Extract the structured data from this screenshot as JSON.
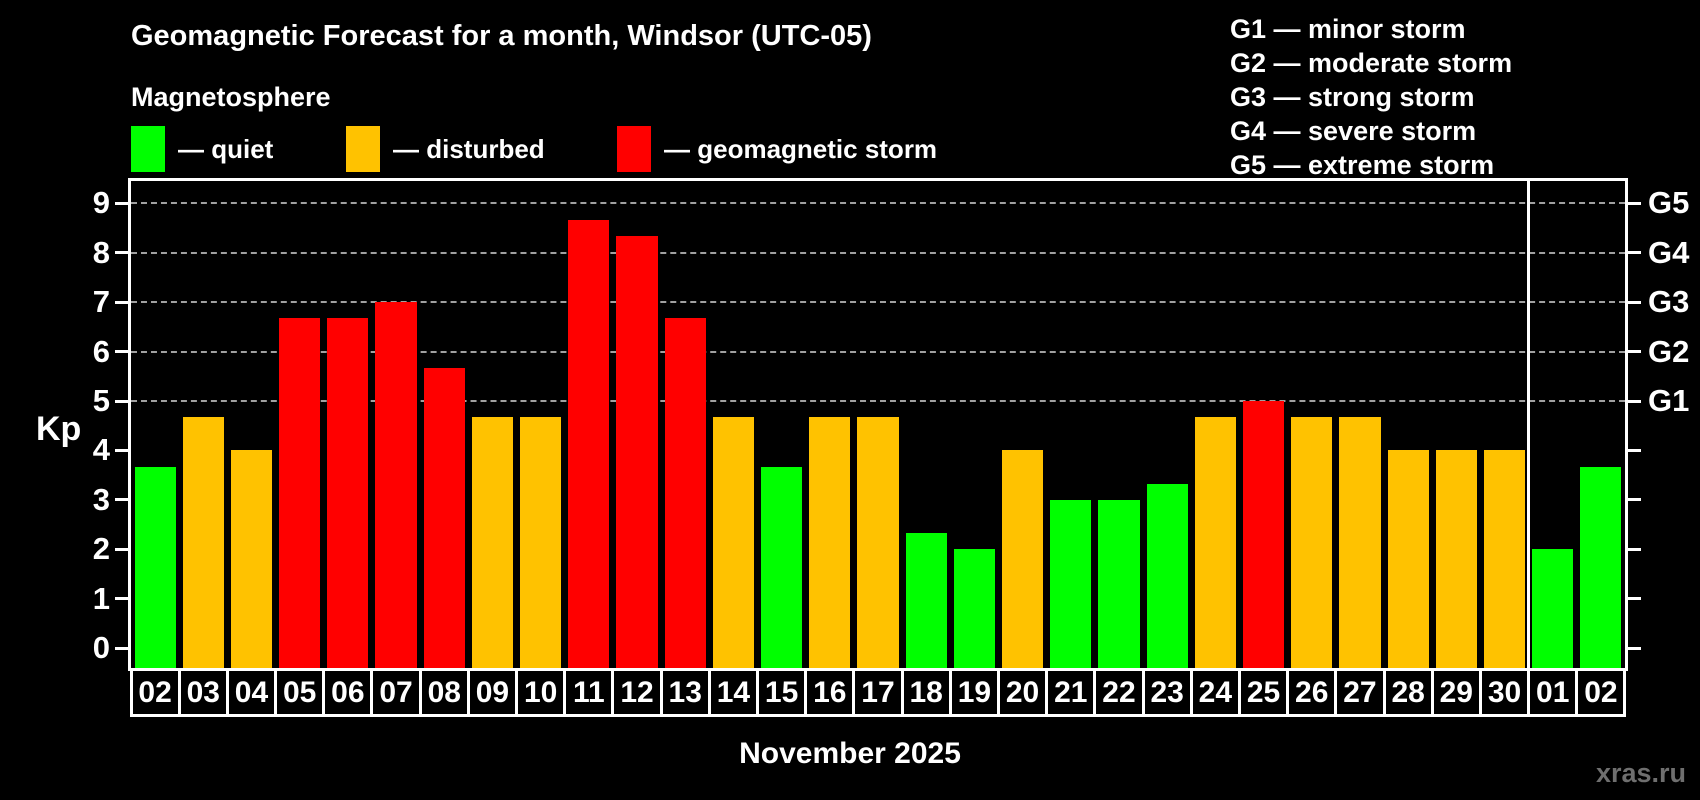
{
  "title": "Geomagnetic Forecast for a month, Windsor (UTC-05)",
  "subtitle": "Magnetosphere",
  "legend": [
    {
      "key": "quiet",
      "label": "— quiet",
      "color": "#00ff00"
    },
    {
      "key": "disturbed",
      "label": "— disturbed",
      "color": "#ffc200"
    },
    {
      "key": "storm",
      "label": "— geomagnetic storm",
      "color": "#ff0000"
    }
  ],
  "g_scale_legend": [
    "G1 — minor storm",
    "G2 — moderate storm",
    "G3 — strong storm",
    "G4 — severe storm",
    "G5 — extreme storm"
  ],
  "y_axis_title": "Kp",
  "x_axis_title": "November 2025",
  "watermark": "xras.ru",
  "chart_data": {
    "type": "bar",
    "title": "Geomagnetic Forecast for a month, Windsor (UTC-05)",
    "xlabel": "November 2025",
    "ylabel": "Kp",
    "categories": [
      "02",
      "03",
      "04",
      "05",
      "06",
      "07",
      "08",
      "09",
      "10",
      "11",
      "12",
      "13",
      "14",
      "15",
      "16",
      "17",
      "18",
      "19",
      "20",
      "21",
      "22",
      "23",
      "24",
      "25",
      "26",
      "27",
      "28",
      "29",
      "30",
      "01",
      "02"
    ],
    "values": [
      3.67,
      4.67,
      4.0,
      6.67,
      6.67,
      7.0,
      5.67,
      4.67,
      4.67,
      8.67,
      8.33,
      6.67,
      4.67,
      3.67,
      4.67,
      4.67,
      2.33,
      2.0,
      4.0,
      3.0,
      3.0,
      3.33,
      4.67,
      5.0,
      4.67,
      4.67,
      4.0,
      4.0,
      4.0,
      2.0,
      3.67
    ],
    "states": [
      "quiet",
      "disturbed",
      "disturbed",
      "storm",
      "storm",
      "storm",
      "storm",
      "disturbed",
      "disturbed",
      "storm",
      "storm",
      "storm",
      "disturbed",
      "quiet",
      "disturbed",
      "disturbed",
      "quiet",
      "quiet",
      "disturbed",
      "quiet",
      "quiet",
      "quiet",
      "disturbed",
      "storm",
      "disturbed",
      "disturbed",
      "disturbed",
      "disturbed",
      "disturbed",
      "quiet",
      "quiet"
    ],
    "colors": {
      "quiet": "#00ff00",
      "disturbed": "#ffc200",
      "storm": "#ff0000"
    },
    "ylim": [
      -0.4,
      9.45
    ],
    "yticks": [
      0,
      1,
      2,
      3,
      4,
      5,
      6,
      7,
      8,
      9
    ],
    "gridlines_at": [
      5,
      6,
      7,
      8,
      9
    ],
    "right_axis_labels": [
      {
        "label": "G1",
        "kp": 5
      },
      {
        "label": "G2",
        "kp": 6
      },
      {
        "label": "G3",
        "kp": 7
      },
      {
        "label": "G4",
        "kp": 8
      },
      {
        "label": "G5",
        "kp": 9
      }
    ],
    "month_separator_after_index": 28,
    "grid": true,
    "legend_position": "top"
  }
}
